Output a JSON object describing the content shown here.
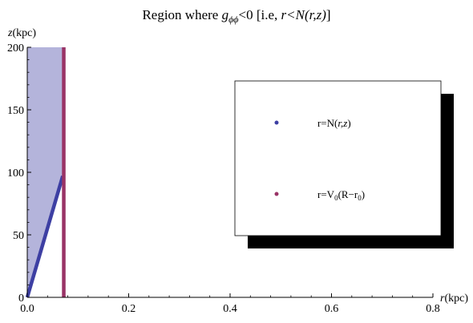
{
  "chart_data": {
    "type": "line",
    "title_prefix": "Region where ",
    "title_sym": "g",
    "title_sub": "ϕϕ",
    "title_mid": "<0  [i.e, ",
    "title_expr": "r<N(r,z)",
    "title_suffix": "]",
    "xlabel_var": "r",
    "xlabel_unit": "(kpc)",
    "ylabel_var": "z",
    "ylabel_unit": "(kpc)",
    "xlim": [
      0,
      0.8
    ],
    "ylim": [
      0,
      200
    ],
    "x_ticks": [
      "0.0",
      "0.2",
      "0.4",
      "0.6",
      "0.8"
    ],
    "x_tick_values": [
      0.0,
      0.2,
      0.4,
      0.6,
      0.8
    ],
    "y_ticks": [
      "0",
      "50",
      "100",
      "150",
      "200"
    ],
    "y_tick_values": [
      0,
      50,
      100,
      150,
      200
    ],
    "series": [
      {
        "label_main": "r=N(",
        "label_args": "r,z",
        "label_end": ")",
        "color": "#3d3fa3",
        "points": [
          [
            0.0,
            0
          ],
          [
            0.07,
            97
          ]
        ]
      },
      {
        "label_main": "r=V",
        "label_sub": "0",
        "label_paren": "(R−r",
        "label_sub2": "0",
        "label_end": ")",
        "color": "#993366",
        "points": [
          [
            0.072,
            0
          ],
          [
            0.072,
            200
          ]
        ]
      }
    ],
    "shaded_region": {
      "color": "#b4b4db",
      "points": [
        [
          0.0,
          0
        ],
        [
          0.07,
          97
        ],
        [
          0.07,
          200
        ],
        [
          0.0,
          200
        ]
      ]
    },
    "legend_position": "right"
  }
}
